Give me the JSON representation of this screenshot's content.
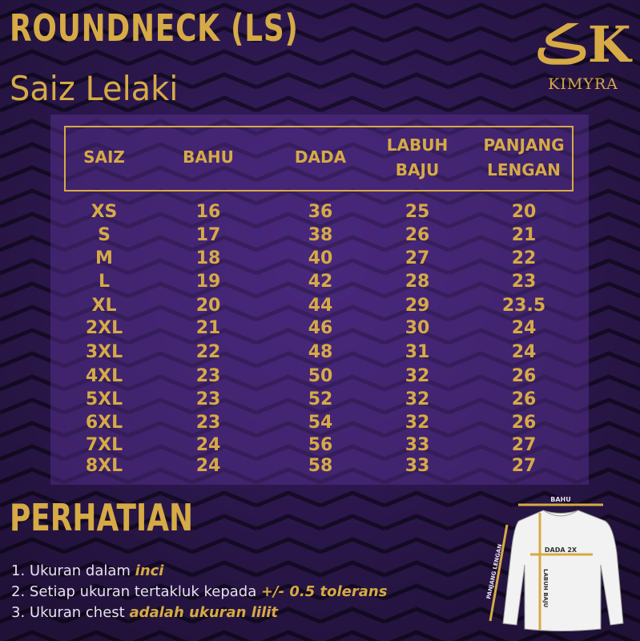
{
  "title": "ROUNDNECK (LS)",
  "subtitle": "Saiz Lelaki",
  "brand": {
    "mark": "ڪK",
    "name": "KIMYRA"
  },
  "colors": {
    "gold": "#d6aa45",
    "purple": "#3a1f66"
  },
  "table": {
    "headers": [
      {
        "line1": "SAIZ",
        "line2": ""
      },
      {
        "line1": "BAHU",
        "line2": ""
      },
      {
        "line1": "DADA",
        "line2": ""
      },
      {
        "line1": "LABUH",
        "line2": "BAJU"
      },
      {
        "line1": "PANJANG",
        "line2": "LENGAN"
      }
    ],
    "rows": [
      [
        "XS",
        "16",
        "36",
        "25",
        "20"
      ],
      [
        "S",
        "17",
        "38",
        "26",
        "21"
      ],
      [
        "M",
        "18",
        "40",
        "27",
        "22"
      ],
      [
        "L",
        "19",
        "42",
        "28",
        "23"
      ],
      [
        "XL",
        "20",
        "44",
        "29",
        "23.5"
      ],
      [
        "2XL",
        "21",
        "46",
        "30",
        "24"
      ],
      [
        "3XL",
        "22",
        "48",
        "31",
        "24"
      ],
      [
        "4XL",
        "23",
        "50",
        "32",
        "26"
      ],
      [
        "5XL",
        "23",
        "52",
        "32",
        "26"
      ],
      [
        "6XL",
        "23",
        "54",
        "32",
        "26"
      ],
      [
        "7XL",
        "24",
        "56",
        "33",
        "27"
      ],
      [
        "8XL",
        "24",
        "58",
        "33",
        "27"
      ]
    ]
  },
  "notes_title": "PERHATIAN",
  "notes": [
    {
      "text": "1. Ukuran dalam ",
      "emphasis": "inci"
    },
    {
      "text": "2. Setiap ukuran tertakluk kepada ",
      "emphasis": "+/- 0.5 tolerans"
    },
    {
      "text": "3. Ukuran chest ",
      "emphasis": "adalah ukuran lilit"
    }
  ],
  "diagram": {
    "bahu": "BAHU",
    "dada": "DADA 2X",
    "labuh": "LABUH BAJU",
    "lengan": "PANJANG LENGAN"
  }
}
